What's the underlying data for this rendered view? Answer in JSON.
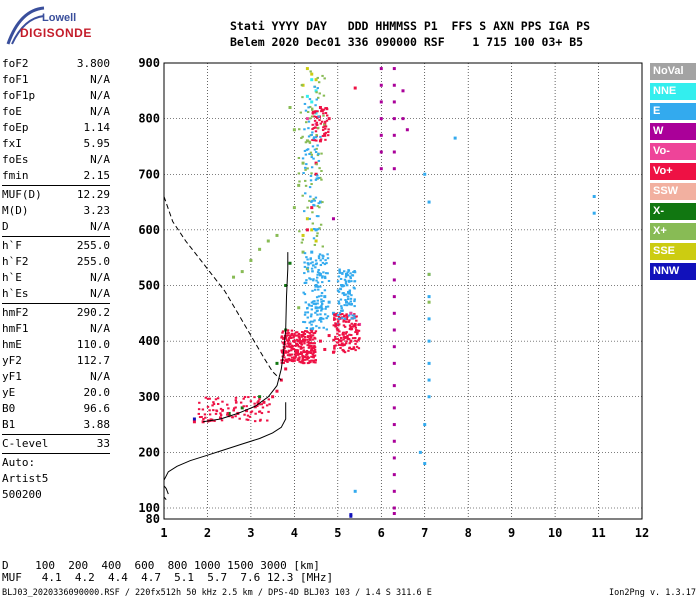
{
  "logo": {
    "top": "Lowell",
    "bottom": "DIGISONDE"
  },
  "header": {
    "line1": "Stati YYYY DAY   DDD HHMMSS P1  FFS S AXN PPS IGA PS",
    "line2": "Belem 2020 Dec01 336 090000 RSF    1 715 100 03+ B5"
  },
  "params1": [
    {
      "name": "foF2",
      "value": "3.800"
    },
    {
      "name": "foF1",
      "value": "N/A"
    },
    {
      "name": "foF1p",
      "value": "N/A"
    },
    {
      "name": "foE",
      "value": "N/A"
    },
    {
      "name": "foEp",
      "value": "1.14"
    },
    {
      "name": "fxI",
      "value": "5.95"
    },
    {
      "name": "foEs",
      "value": "N/A"
    },
    {
      "name": "fmin",
      "value": "2.15"
    }
  ],
  "params2": [
    {
      "name": "MUF(D)",
      "value": "12.29"
    },
    {
      "name": "M(D)",
      "value": "3.23"
    },
    {
      "name": "D",
      "value": "N/A"
    }
  ],
  "params3": [
    {
      "name": "h`F",
      "value": "255.0"
    },
    {
      "name": "h`F2",
      "value": "255.0"
    },
    {
      "name": "h`E",
      "value": "N/A"
    },
    {
      "name": "h`Es",
      "value": "N/A"
    }
  ],
  "params4": [
    {
      "name": "hmF2",
      "value": "290.2"
    },
    {
      "name": "hmF1",
      "value": "N/A"
    },
    {
      "name": "hmE",
      "value": "110.0"
    },
    {
      "name": "yF2",
      "value": "112.7"
    },
    {
      "name": "yF1",
      "value": "N/A"
    },
    {
      "name": "yE",
      "value": "20.0"
    },
    {
      "name": "B0",
      "value": "96.6"
    },
    {
      "name": "B1",
      "value": "3.88"
    }
  ],
  "params5": [
    {
      "name": "C-level",
      "value": "33"
    }
  ],
  "auto": {
    "l1": "Auto:",
    "l2": "Artist5",
    "l3": "500200"
  },
  "legend": [
    {
      "label": "NoVal",
      "color": "#a3a3a3"
    },
    {
      "label": "NNE",
      "color": "#33eeee"
    },
    {
      "label": "E",
      "color": "#33aaee"
    },
    {
      "label": "W",
      "color": "#aa0099"
    },
    {
      "label": "Vo-",
      "color": "#ee4499"
    },
    {
      "label": "Vo+",
      "color": "#ee1144"
    },
    {
      "label": "SSW",
      "color": "#f2b0a0"
    },
    {
      "label": "X-",
      "color": "#117711"
    },
    {
      "label": "X+",
      "color": "#88bb55"
    },
    {
      "label": "SSE",
      "color": "#cccc11"
    },
    {
      "label": "NNW",
      "color": "#1111bb"
    }
  ],
  "muf_table": {
    "d_line": "D    100  200  400  600  800 1000 1500 3000 [km]",
    "muf_line": "MUF   4.1  4.2  4.4  4.7  5.1  5.7  7.6 12.3 [MHz]"
  },
  "footer": {
    "left": "BLJ03_2020336090000.RSF / 220fx512h 50 kHz 2.5 km / DPS-4D BLJ03 103 / 1.4 S 311.6 E",
    "right": "Ion2Png v. 1.3.17"
  },
  "chart_data": {
    "type": "scatter",
    "xlim": [
      1,
      12
    ],
    "ylim": [
      80,
      900
    ],
    "xticks": [
      1,
      2,
      3,
      4,
      5,
      6,
      7,
      8,
      9,
      10,
      11,
      12
    ],
    "yticks": [
      80,
      100,
      200,
      300,
      400,
      500,
      600,
      700,
      800,
      900
    ],
    "grid": true,
    "xlabel": "",
    "ylabel": "",
    "series": [
      {
        "name": "Vo+",
        "color": "#ee1144",
        "points": [
          [
            1.7,
            255
          ],
          [
            1.9,
            255
          ],
          [
            2.1,
            258
          ],
          [
            2.3,
            262
          ],
          [
            2.5,
            266
          ],
          [
            2.7,
            270
          ],
          [
            2.9,
            275
          ],
          [
            3.1,
            282
          ],
          [
            3.3,
            290
          ],
          [
            3.5,
            300
          ],
          [
            3.6,
            310
          ],
          [
            3.7,
            330
          ],
          [
            3.8,
            350
          ],
          [
            3.8,
            380
          ],
          [
            3.9,
            375
          ],
          [
            4.0,
            370
          ],
          [
            4.1,
            368
          ],
          [
            4.2,
            372
          ],
          [
            4.3,
            380
          ],
          [
            4.4,
            385
          ],
          [
            3.9,
            395
          ],
          [
            4.0,
            400
          ],
          [
            4.2,
            410
          ],
          [
            4.4,
            420
          ],
          [
            4.6,
            400
          ],
          [
            4.8,
            410
          ],
          [
            5.0,
            420
          ],
          [
            5.2,
            440
          ],
          [
            5.4,
            430
          ],
          [
            5.3,
            400
          ],
          [
            5.1,
            395
          ],
          [
            4.9,
            380
          ],
          [
            4.7,
            385
          ],
          [
            4.5,
            700
          ],
          [
            4.6,
            760
          ],
          [
            4.7,
            790
          ],
          [
            4.8,
            800
          ],
          [
            4.6,
            820
          ],
          [
            4.7,
            770
          ],
          [
            4.5,
            720
          ],
          [
            4.4,
            640
          ],
          [
            4.3,
            600
          ],
          [
            5.4,
            855
          ]
        ]
      },
      {
        "name": "E",
        "color": "#33aaee",
        "points": [
          [
            4.5,
            500
          ],
          [
            4.6,
            520
          ],
          [
            4.7,
            480
          ],
          [
            4.5,
            460
          ],
          [
            4.6,
            440
          ],
          [
            4.4,
            560
          ],
          [
            4.5,
            600
          ],
          [
            4.6,
            650
          ],
          [
            5.1,
            500
          ],
          [
            5.2,
            470
          ],
          [
            5.3,
            450
          ],
          [
            5.2,
            520
          ],
          [
            4.8,
            470
          ],
          [
            4.9,
            450
          ],
          [
            5.0,
            430
          ],
          [
            7.1,
            520
          ],
          [
            7.1,
            480
          ],
          [
            7.1,
            440
          ],
          [
            7.1,
            400
          ],
          [
            7.1,
            360
          ],
          [
            7.1,
            330
          ],
          [
            7.1,
            300
          ],
          [
            7.0,
            250
          ],
          [
            6.9,
            200
          ],
          [
            7.0,
            180
          ],
          [
            7.7,
            765
          ],
          [
            10.9,
            660
          ],
          [
            10.9,
            630
          ],
          [
            5.4,
            130
          ],
          [
            7.0,
            700
          ],
          [
            7.1,
            650
          ]
        ]
      },
      {
        "name": "W",
        "color": "#aa0099",
        "points": [
          [
            6.0,
            890
          ],
          [
            6.0,
            860
          ],
          [
            6.0,
            830
          ],
          [
            6.0,
            800
          ],
          [
            6.0,
            770
          ],
          [
            6.0,
            740
          ],
          [
            6.0,
            710
          ],
          [
            6.3,
            890
          ],
          [
            6.3,
            860
          ],
          [
            6.3,
            830
          ],
          [
            6.3,
            800
          ],
          [
            6.3,
            770
          ],
          [
            6.3,
            740
          ],
          [
            6.3,
            710
          ],
          [
            6.3,
            540
          ],
          [
            6.3,
            510
          ],
          [
            6.3,
            480
          ],
          [
            6.3,
            450
          ],
          [
            6.3,
            420
          ],
          [
            6.3,
            390
          ],
          [
            6.3,
            360
          ],
          [
            6.3,
            320
          ],
          [
            6.3,
            280
          ],
          [
            6.3,
            250
          ],
          [
            6.3,
            220
          ],
          [
            6.3,
            190
          ],
          [
            6.3,
            160
          ],
          [
            6.3,
            130
          ],
          [
            6.3,
            100
          ],
          [
            6.3,
            90
          ],
          [
            6.5,
            850
          ],
          [
            6.5,
            800
          ],
          [
            6.6,
            780
          ],
          [
            4.9,
            620
          ]
        ]
      },
      {
        "name": "NNE",
        "color": "#33eeee",
        "points": [
          [
            4.4,
            870
          ],
          [
            4.5,
            850
          ],
          [
            4.4,
            830
          ],
          [
            4.5,
            810
          ],
          [
            4.3,
            840
          ]
        ]
      },
      {
        "name": "X+",
        "color": "#88bb55",
        "points": [
          [
            2.6,
            515
          ],
          [
            2.8,
            525
          ],
          [
            3.0,
            545
          ],
          [
            3.2,
            565
          ],
          [
            3.4,
            580
          ],
          [
            3.6,
            590
          ],
          [
            4.0,
            640
          ],
          [
            4.1,
            680
          ],
          [
            4.2,
            720
          ],
          [
            4.3,
            760
          ],
          [
            4.0,
            780
          ],
          [
            3.9,
            820
          ],
          [
            4.2,
            560
          ],
          [
            4.3,
            530
          ],
          [
            4.1,
            460
          ],
          [
            7.1,
            520
          ],
          [
            7.1,
            470
          ]
        ]
      },
      {
        "name": "SSE",
        "color": "#cccc11",
        "points": [
          [
            4.3,
            890
          ],
          [
            4.4,
            880
          ],
          [
            4.2,
            860
          ],
          [
            4.5,
            870
          ],
          [
            4.3,
            620
          ],
          [
            4.4,
            600
          ],
          [
            4.2,
            590
          ],
          [
            4.5,
            580
          ]
        ]
      },
      {
        "name": "X-",
        "color": "#117711",
        "points": [
          [
            2.5,
            270
          ],
          [
            2.8,
            280
          ],
          [
            3.2,
            300
          ],
          [
            3.6,
            360
          ],
          [
            3.8,
            420
          ],
          [
            3.8,
            500
          ],
          [
            3.9,
            540
          ]
        ]
      },
      {
        "name": "NNW",
        "color": "#1111bb",
        "points": [
          [
            1.7,
            260
          ],
          [
            5.3,
            85
          ],
          [
            5.3,
            88
          ]
        ]
      },
      {
        "name": "Vo-",
        "color": "#ee4499",
        "points": [
          [
            4.3,
            800
          ],
          [
            4.5,
            790
          ],
          [
            5.3,
            450
          ],
          [
            5.5,
            430
          ]
        ]
      }
    ],
    "profile_line": [
      [
        1.0,
        150
      ],
      [
        1.1,
        165
      ],
      [
        1.3,
        175
      ],
      [
        1.6,
        185
      ],
      [
        2.0,
        195
      ],
      [
        2.4,
        205
      ],
      [
        2.8,
        215
      ],
      [
        3.2,
        225
      ],
      [
        3.5,
        235
      ],
      [
        3.7,
        245
      ],
      [
        3.8,
        260
      ],
      [
        3.8,
        290
      ]
    ],
    "trace_line": [
      [
        1.9,
        255
      ],
      [
        2.3,
        260
      ],
      [
        2.7,
        270
      ],
      [
        3.1,
        283
      ],
      [
        3.4,
        300
      ],
      [
        3.6,
        320
      ],
      [
        3.7,
        350
      ],
      [
        3.75,
        380
      ],
      [
        3.8,
        420
      ],
      [
        3.82,
        480
      ],
      [
        3.85,
        530
      ],
      [
        3.85,
        560
      ]
    ],
    "dashed_line": [
      [
        1.0,
        660
      ],
      [
        1.2,
        615
      ],
      [
        1.5,
        580
      ],
      [
        1.8,
        550
      ],
      [
        2.1,
        520
      ],
      [
        2.4,
        490
      ],
      [
        2.7,
        450
      ],
      [
        3.0,
        410
      ],
      [
        3.3,
        370
      ],
      [
        3.5,
        345
      ],
      [
        3.7,
        330
      ]
    ],
    "bottom_loop": [
      [
        1.1,
        125
      ],
      [
        1.05,
        135
      ],
      [
        1.0,
        140
      ],
      [
        1.0,
        120
      ],
      [
        1.05,
        115
      ]
    ]
  }
}
